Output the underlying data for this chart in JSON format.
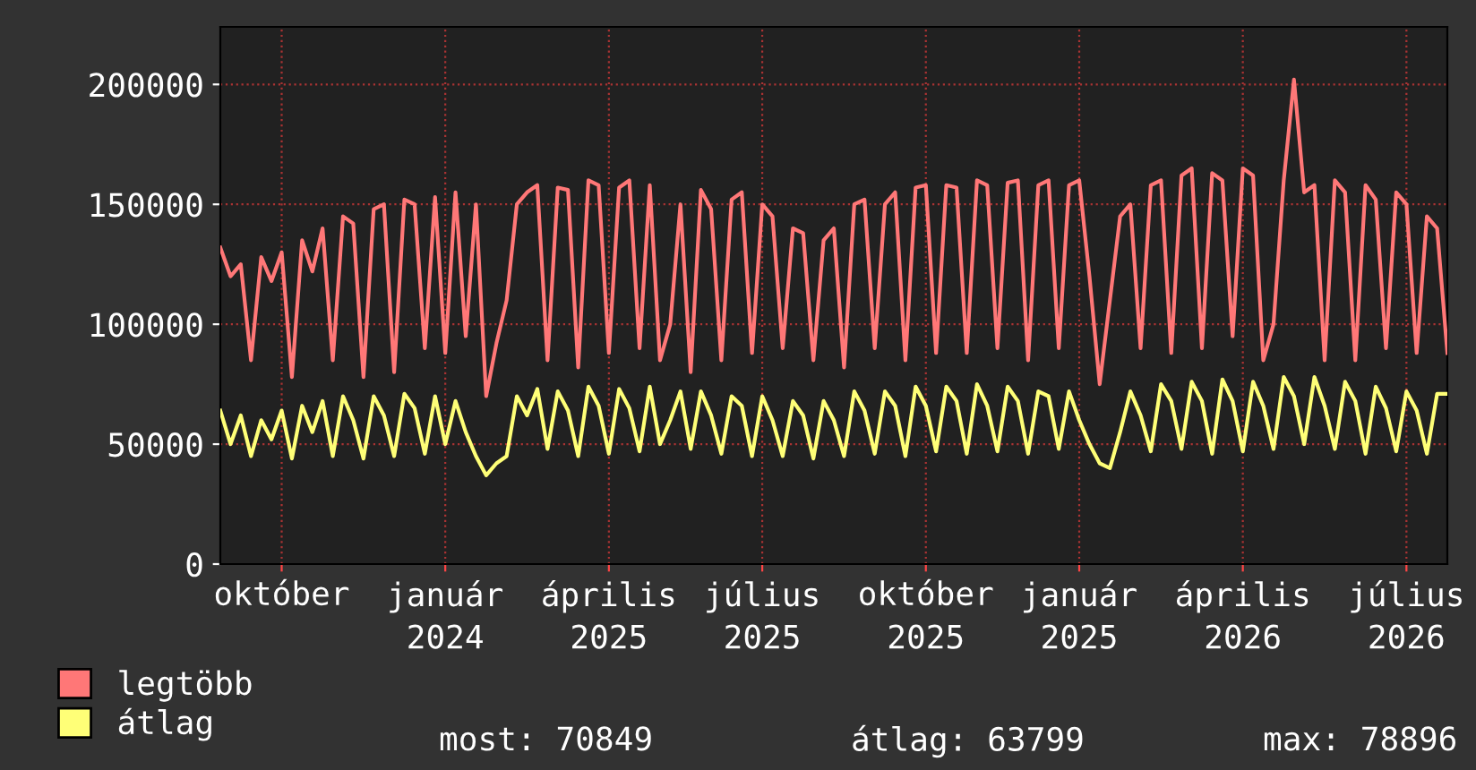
{
  "chart_data": {
    "type": "line",
    "categories": [
      null,
      null,
      null,
      null,
      null,
      null,
      "október",
      null,
      null,
      null,
      null,
      null,
      null,
      null,
      null,
      null,
      null,
      null,
      null,
      null,
      null,
      null,
      "január",
      null,
      null,
      null,
      null,
      null,
      null,
      null,
      null,
      null,
      null,
      null,
      null,
      null,
      null,
      null,
      "április",
      null,
      null,
      null,
      null,
      null,
      null,
      null,
      null,
      null,
      null,
      null,
      null,
      null,
      null,
      "július",
      null,
      null,
      null,
      null,
      null,
      null,
      null,
      null,
      null,
      null,
      null,
      null,
      null,
      null,
      null,
      "október",
      null,
      null,
      null,
      null,
      null,
      null,
      null,
      null,
      null,
      null,
      null,
      null,
      null,
      null,
      "január",
      null,
      null,
      null,
      null,
      null,
      null,
      null,
      null,
      null,
      null,
      null,
      null,
      null,
      null,
      null,
      "április",
      null,
      null,
      null,
      null,
      null,
      null,
      null,
      null,
      null,
      null,
      null,
      null,
      null,
      null,
      null,
      "július",
      null,
      null,
      null,
      null
    ],
    "series": [
      {
        "name": "legtöbb",
        "color": "#ff7777",
        "values": [
          132000,
          120000,
          125000,
          85000,
          128000,
          118000,
          130000,
          78000,
          135000,
          122000,
          140000,
          85000,
          145000,
          142000,
          78000,
          148000,
          150000,
          80000,
          152000,
          150000,
          90000,
          153000,
          88000,
          155000,
          95000,
          150000,
          70000,
          92000,
          110000,
          150000,
          155000,
          158000,
          85000,
          157000,
          156000,
          82000,
          160000,
          158000,
          88000,
          157000,
          160000,
          90000,
          158000,
          85000,
          100000,
          150000,
          80000,
          156000,
          148000,
          85000,
          152000,
          155000,
          88000,
          150000,
          145000,
          90000,
          140000,
          138000,
          85000,
          135000,
          140000,
          82000,
          150000,
          152000,
          90000,
          150000,
          155000,
          85000,
          157000,
          158000,
          88000,
          158000,
          157000,
          88000,
          160000,
          158000,
          90000,
          159000,
          160000,
          85000,
          158000,
          160000,
          90000,
          158000,
          160000,
          120000,
          75000,
          110000,
          145000,
          150000,
          90000,
          158000,
          160000,
          88000,
          162000,
          165000,
          90000,
          163000,
          160000,
          95000,
          165000,
          162000,
          85000,
          100000,
          160000,
          202000,
          155000,
          158000,
          85000,
          160000,
          155000,
          85000,
          158000,
          152000,
          90000,
          155000,
          150000,
          88000,
          145000,
          140000,
          88000
        ]
      },
      {
        "name": "átlag",
        "color": "#ffff77",
        "values": [
          64000,
          50000,
          62000,
          45000,
          60000,
          52000,
          64000,
          44000,
          66000,
          55000,
          68000,
          45000,
          70000,
          60000,
          44000,
          70000,
          62000,
          45000,
          71000,
          65000,
          46000,
          70000,
          50000,
          68000,
          55000,
          45000,
          37000,
          42000,
          45000,
          70000,
          62000,
          73000,
          48000,
          72000,
          64000,
          45000,
          74000,
          66000,
          46000,
          73000,
          65000,
          47000,
          74000,
          50000,
          60000,
          72000,
          48000,
          72000,
          62000,
          46000,
          70000,
          66000,
          45000,
          70000,
          60000,
          45000,
          68000,
          62000,
          44000,
          68000,
          60000,
          45000,
          72000,
          64000,
          46000,
          72000,
          66000,
          45000,
          74000,
          66000,
          47000,
          74000,
          68000,
          46000,
          75000,
          66000,
          47000,
          74000,
          68000,
          46000,
          72000,
          70000,
          48000,
          72000,
          60000,
          50000,
          42000,
          40000,
          55000,
          72000,
          62000,
          47000,
          75000,
          68000,
          48000,
          76000,
          68000,
          46000,
          77000,
          68000,
          47000,
          76000,
          66000,
          48000,
          78000,
          70000,
          50000,
          78000,
          66000,
          48000,
          76000,
          68000,
          46000,
          74000,
          65000,
          47000,
          72000,
          64000,
          46000,
          71000,
          71000
        ]
      }
    ],
    "ylim": [
      0,
      224000
    ],
    "yticks": [
      0,
      50000,
      100000,
      150000,
      200000
    ],
    "grid": true,
    "legend": "bottom",
    "marker": "none",
    "line_style": "solid",
    "annotations": [
      "2024",
      "2025",
      "2025",
      "2025",
      "2025",
      "2026",
      "2026",
      "most: 70849",
      "átlag: 63799",
      "max: 78896"
    ]
  }
}
